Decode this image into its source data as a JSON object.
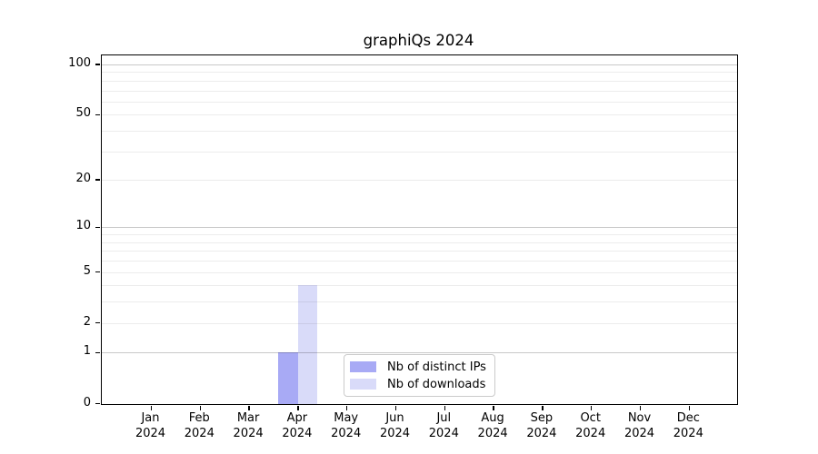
{
  "chart_data": {
    "type": "bar",
    "title": "graphiQs 2024",
    "xlabel": "",
    "ylabel": "",
    "year_label": "2024",
    "categories": [
      "Jan",
      "Feb",
      "Mar",
      "Apr",
      "May",
      "Jun",
      "Jul",
      "Aug",
      "Sep",
      "Oct",
      "Nov",
      "Dec"
    ],
    "series": [
      {
        "name": "Nb of distinct IPs",
        "color": "#a8aaf5",
        "values": [
          0,
          0,
          0,
          1,
          0,
          0,
          0,
          0,
          0,
          0,
          0,
          0
        ]
      },
      {
        "name": "Nb of downloads",
        "color": "#d9dbf9",
        "values": [
          0,
          0,
          0,
          4,
          0,
          0,
          0,
          0,
          0,
          0,
          0,
          0
        ]
      }
    ],
    "y_axis": {
      "scale": "log1p",
      "tick_values": [
        100,
        50,
        20,
        10,
        5,
        2,
        1,
        0
      ],
      "tick_labels": [
        "100",
        "50",
        "20",
        "10",
        "5",
        "2",
        "1",
        "0"
      ],
      "max": 113
    },
    "gridlines": {
      "decade": [
        1,
        10,
        100
      ],
      "minor": [
        2,
        3,
        4,
        5,
        6,
        7,
        8,
        9,
        20,
        30,
        40,
        50,
        60,
        70,
        80,
        90
      ]
    },
    "legend": {
      "position": "lower-center",
      "border_color": "#cbcbcb"
    },
    "colors": {
      "grid_decade": "#c9c9c9",
      "grid_minor": "#ececec",
      "spine": "#000000",
      "background": "#ffffff",
      "text": "#000000"
    }
  }
}
